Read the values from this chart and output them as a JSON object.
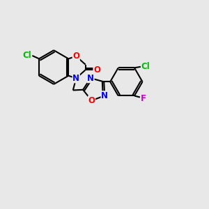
{
  "bg_color": "#e8e8e8",
  "bond_color": "#000000",
  "bond_width": 1.5,
  "atom_colors": {
    "O": "#ff0000",
    "N": "#0000ff",
    "Cl": "#00bb00",
    "F": "#cc00cc",
    "C": "#000000"
  },
  "font_size": 8.5,
  "figsize": [
    3.0,
    3.0
  ],
  "dpi": 100,
  "xlim": [
    0,
    10
  ],
  "ylim": [
    0,
    10
  ]
}
